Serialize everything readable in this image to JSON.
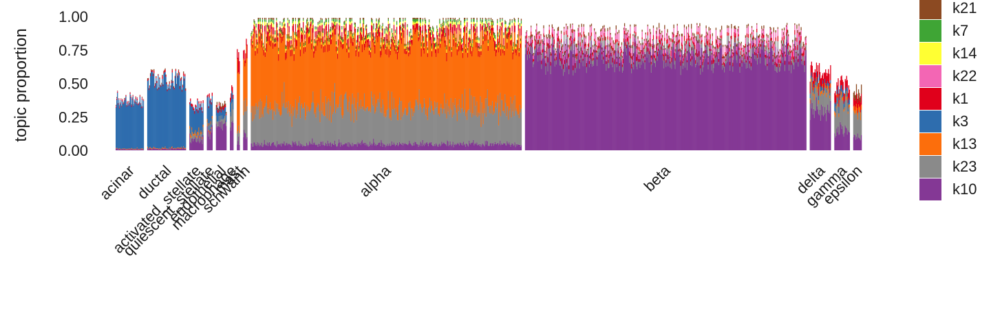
{
  "chart_data": {
    "type": "bar",
    "stacked": true,
    "title": "",
    "xlabel": "",
    "ylabel": "topic proportion",
    "ylim": [
      0,
      1
    ],
    "yticks": [
      "0.00",
      "0.25",
      "0.50",
      "0.75",
      "1.00"
    ],
    "grid": false,
    "legend_position": "right",
    "topics": [
      "k21",
      "k7",
      "k14",
      "k22",
      "k1",
      "k3",
      "k13",
      "k23",
      "k10"
    ],
    "colors": {
      "k21": "#8C4A22",
      "k7": "#3FA535",
      "k14": "#FFFF33",
      "k22": "#F366B4",
      "k1": "#E0001B",
      "k3": "#2E6DAE",
      "k13": "#FC6E0C",
      "k23": "#8A8A8A",
      "k10": "#843895"
    },
    "groups": [
      {
        "name": "acinar",
        "n_samples": 40,
        "approx_total": 0.4,
        "composition": {
          "k3": 0.93,
          "k10": 0.02,
          "k1": 0.02,
          "k13": 0.01,
          "k22": 0.01,
          "k21": 0.01
        }
      },
      {
        "name": "ductal",
        "n_samples": 55,
        "approx_total": 0.55,
        "composition": {
          "k3": 0.94,
          "k10": 0.02,
          "k1": 0.02,
          "k13": 0.01,
          "k21": 0.01
        }
      },
      {
        "name": "activated_stellate",
        "n_samples": 20,
        "approx_total": 0.35,
        "composition": {
          "k3": 0.55,
          "k10": 0.25,
          "k23": 0.1,
          "k1": 0.05,
          "k13": 0.05
        }
      },
      {
        "name": "quiescent_stellate",
        "n_samples": 8,
        "approx_total": 0.4,
        "composition": {
          "k3": 0.45,
          "k10": 0.35,
          "k23": 0.1,
          "k1": 0.05,
          "k13": 0.05
        }
      },
      {
        "name": "endothelial",
        "n_samples": 15,
        "approx_total": 0.35,
        "composition": {
          "k10": 0.55,
          "k3": 0.2,
          "k23": 0.15,
          "k1": 0.05,
          "k21": 0.05
        }
      },
      {
        "name": "macrophage",
        "n_samples": 5,
        "approx_total": 0.45,
        "composition": {
          "k10": 0.4,
          "k23": 0.3,
          "k3": 0.2,
          "k1": 0.1
        }
      },
      {
        "name": "mast",
        "n_samples": 4,
        "approx_total": 0.7,
        "composition": {
          "k13": 0.6,
          "k23": 0.15,
          "k10": 0.1,
          "k1": 0.15
        }
      },
      {
        "name": "schwann",
        "n_samples": 6,
        "approx_total": 0.75,
        "composition": {
          "k13": 0.5,
          "k23": 0.25,
          "k10": 0.15,
          "k1": 0.1
        }
      },
      {
        "name": "alpha",
        "n_samples": 385,
        "approx_total": 0.93,
        "composition": {
          "k13": 0.55,
          "k23": 0.3,
          "k10": 0.05,
          "k1": 0.05,
          "k14": 0.02,
          "k7": 0.02,
          "k21": 0.01
        }
      },
      {
        "name": "beta",
        "n_samples": 400,
        "approx_total": 0.85,
        "composition": {
          "k10": 0.85,
          "k23": 0.05,
          "k22": 0.05,
          "k1": 0.03,
          "k21": 0.02
        }
      },
      {
        "name": "delta",
        "n_samples": 30,
        "approx_total": 0.6,
        "composition": {
          "k10": 0.5,
          "k23": 0.25,
          "k1": 0.15,
          "k3": 0.05,
          "k13": 0.05
        }
      },
      {
        "name": "gamma",
        "n_samples": 22,
        "approx_total": 0.5,
        "composition": {
          "k23": 0.4,
          "k10": 0.3,
          "k1": 0.15,
          "k3": 0.1,
          "k13": 0.05
        }
      },
      {
        "name": "epsilon",
        "n_samples": 12,
        "approx_total": 0.45,
        "composition": {
          "k23": 0.4,
          "k10": 0.25,
          "k1": 0.15,
          "k13": 0.1,
          "k21": 0.1
        }
      }
    ],
    "x_tick_labels": [
      "acinar",
      "ductal",
      "activated_stellate",
      "quiescent_stellate",
      "endothelial",
      "macrophage",
      "mast",
      "schwann",
      "alpha",
      "beta",
      "delta",
      "gamma",
      "epsilon"
    ]
  }
}
